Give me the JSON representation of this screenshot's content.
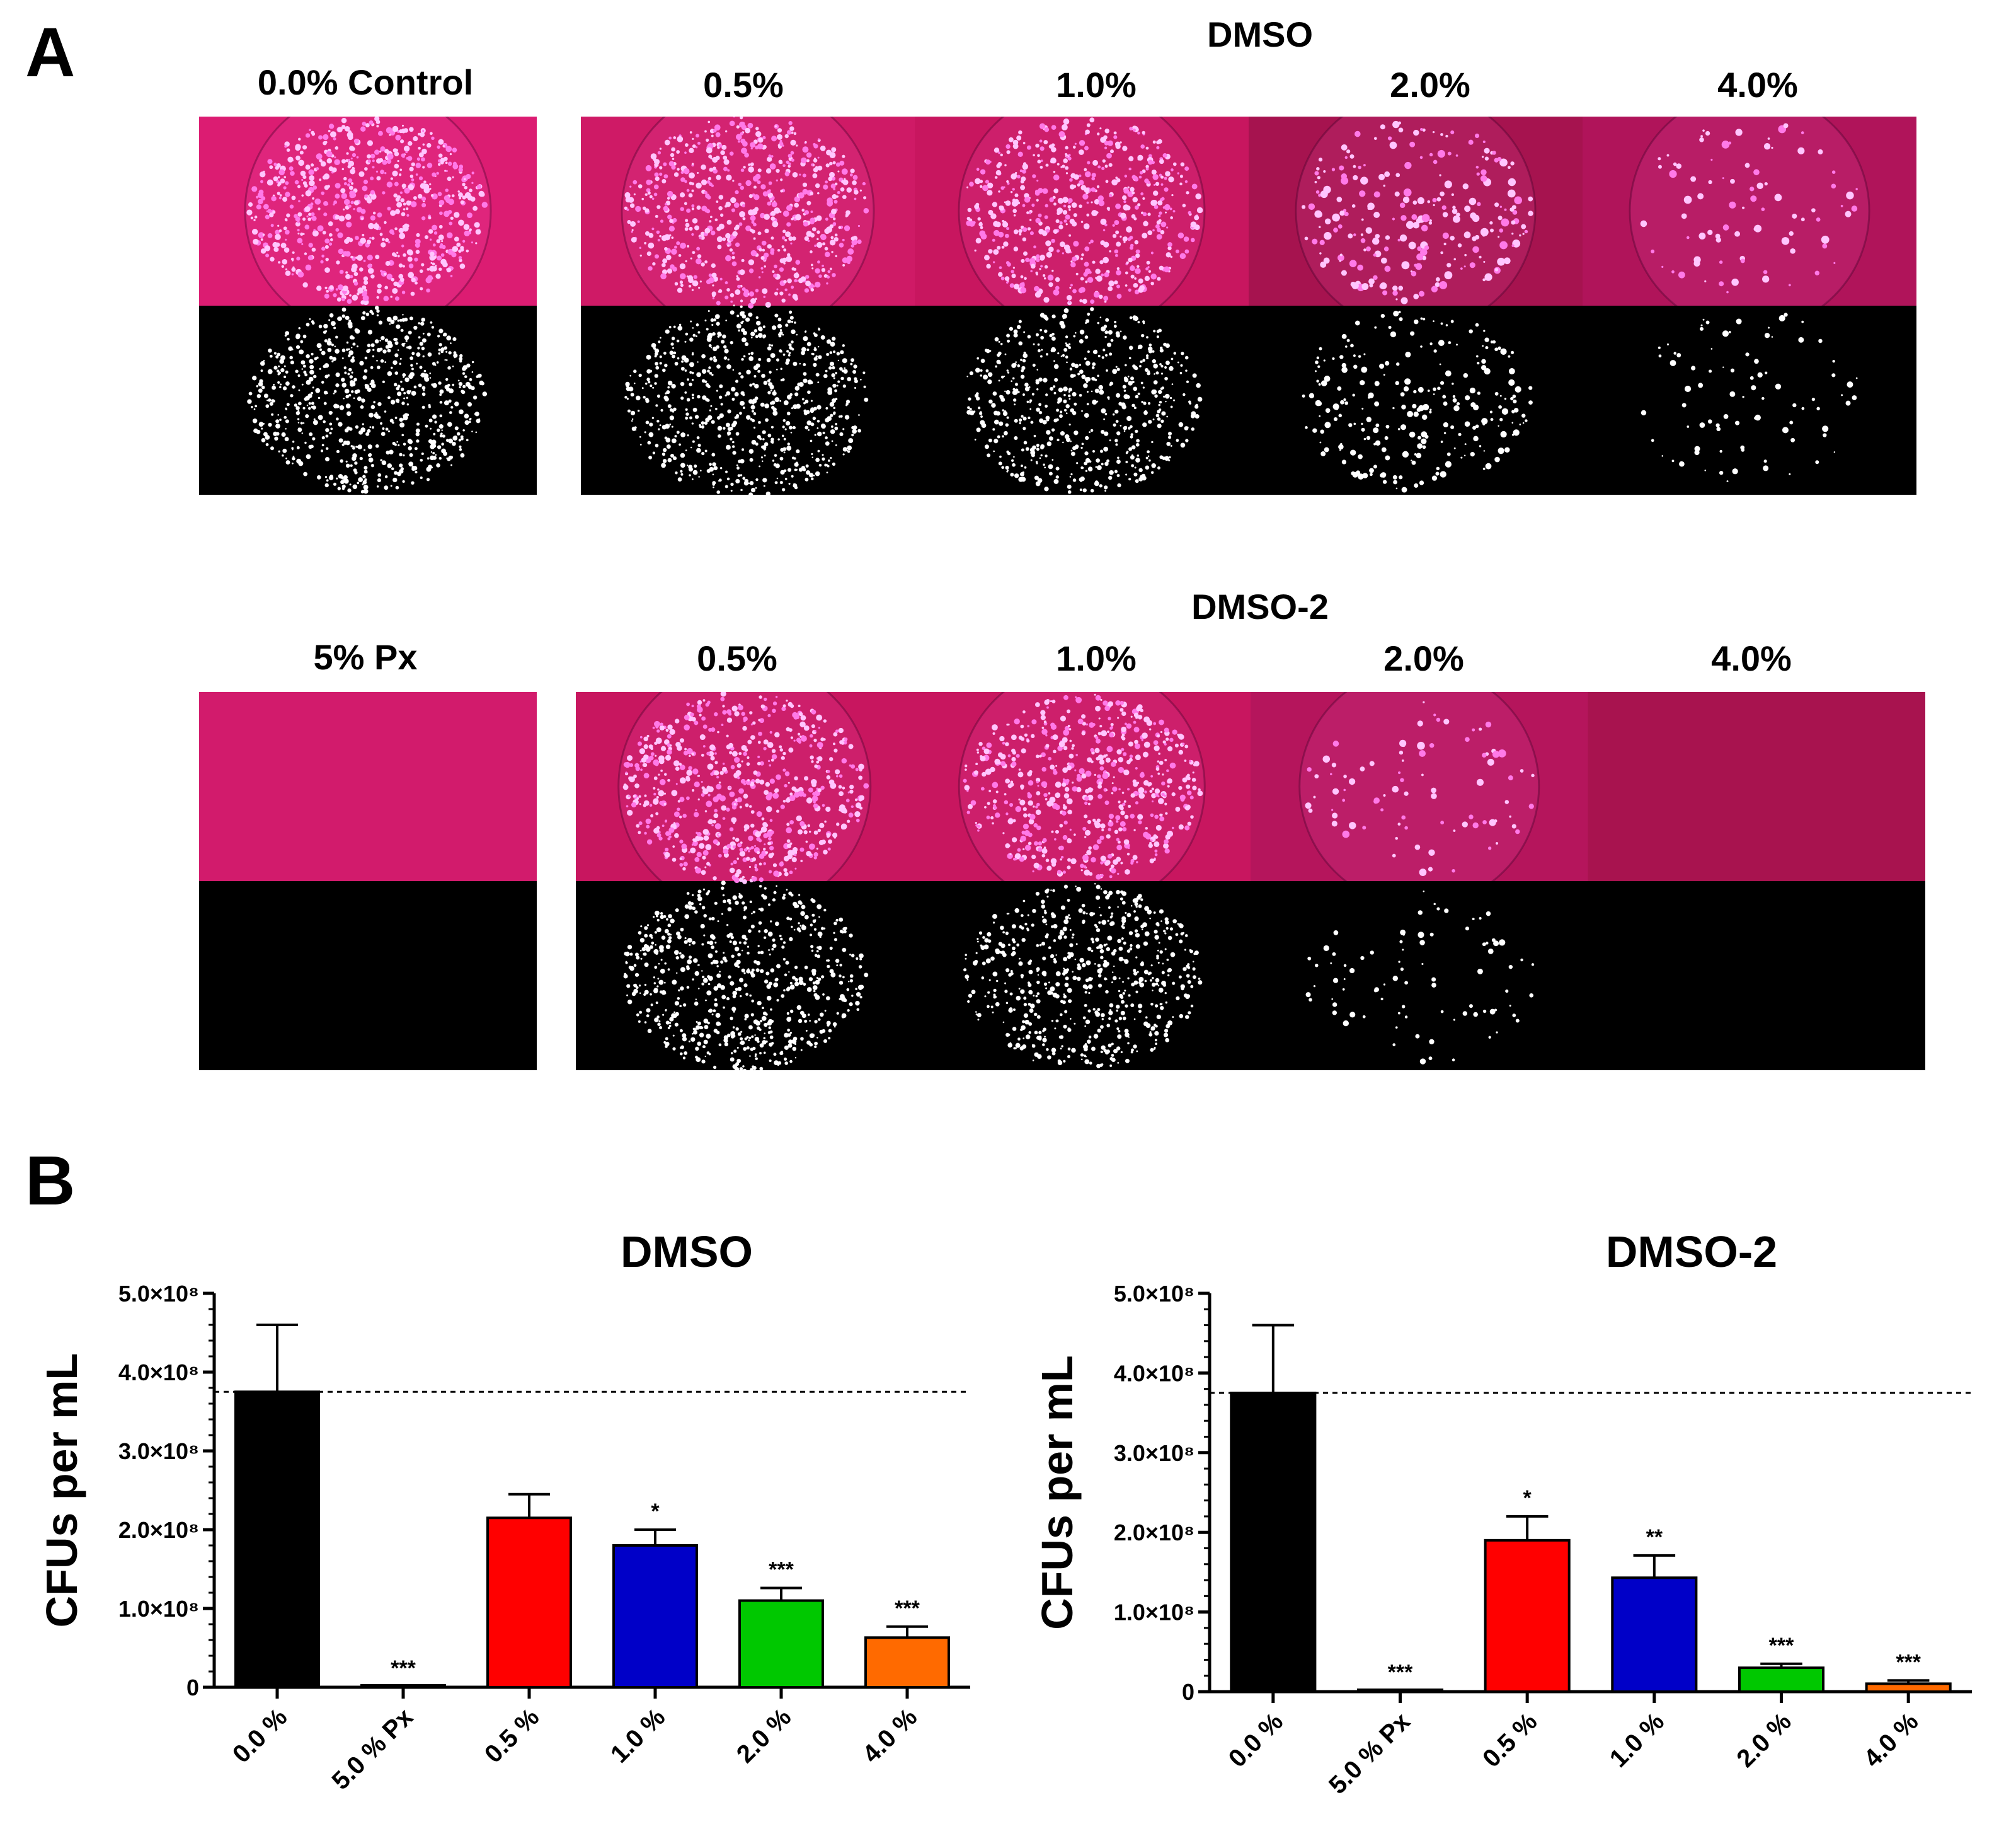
{
  "panel_a": {
    "letter": "A",
    "row1": {
      "group_label": "DMSO",
      "control_label": "0.0% Control",
      "labels": [
        "0.5%",
        "1.0%",
        "2.0%",
        "4.0%"
      ]
    },
    "row2": {
      "group_label": "DMSO-2",
      "control_label": "5% Px",
      "labels": [
        "0.5%",
        "1.0%",
        "2.0%",
        "4.0%"
      ]
    }
  },
  "panel_b": {
    "letter": "B"
  },
  "colors": {
    "black": "#000000",
    "red": "#ff0000",
    "blue": "#0000c8",
    "green": "#00c800",
    "orange": "#ff6a00",
    "plate_pink": "#d81b6a",
    "plate_dark": "#a51551"
  },
  "chart_data": [
    {
      "type": "bar",
      "title": "DMSO",
      "ylabel": "CFUs per mL",
      "xlabel": "",
      "categories": [
        "0.0 %",
        "5.0 % Px",
        "0.5 %",
        "1.0 %",
        "2.0 %",
        "4.0 %"
      ],
      "values": [
        375000000,
        1000000,
        215000000,
        180000000,
        110000000,
        63000000
      ],
      "errors": [
        85000000,
        0,
        30000000,
        20000000,
        16000000,
        14000000
      ],
      "significance": [
        "",
        "***",
        "",
        "*",
        "***",
        "***"
      ],
      "bar_colors": [
        "#000000",
        "#000000",
        "#ff0000",
        "#0000c8",
        "#00c800",
        "#ff6a00"
      ],
      "ylim": [
        0,
        500000000
      ],
      "yticks": [
        0,
        100000000,
        200000000,
        300000000,
        400000000,
        500000000
      ],
      "ytick_labels": [
        "0",
        "1.0×10⁸",
        "2.0×10⁸",
        "3.0×10⁸",
        "4.0×10⁸",
        "5.0×10⁸"
      ],
      "reference_line": 375000000
    },
    {
      "type": "bar",
      "title": "DMSO-2",
      "ylabel": "CFUs per mL",
      "xlabel": "",
      "categories": [
        "0.0 %",
        "5.0 % Px",
        "0.5 %",
        "1.0 %",
        "2.0 %",
        "4.0 %"
      ],
      "values": [
        375000000,
        1000000,
        190000000,
        143000000,
        30000000,
        10000000
      ],
      "errors": [
        85000000,
        0,
        30000000,
        28000000,
        5000000,
        4000000
      ],
      "significance": [
        "",
        "***",
        "*",
        "**",
        "***",
        "***"
      ],
      "bar_colors": [
        "#000000",
        "#000000",
        "#ff0000",
        "#0000c8",
        "#00c800",
        "#ff6a00"
      ],
      "ylim": [
        0,
        500000000
      ],
      "yticks": [
        0,
        100000000,
        200000000,
        300000000,
        400000000,
        500000000
      ],
      "ytick_labels": [
        "0",
        "1.0×10⁸",
        "2.0×10⁸",
        "3.0×10⁸",
        "4.0×10⁸",
        "5.0×10⁸"
      ],
      "reference_line": 375000000
    }
  ]
}
